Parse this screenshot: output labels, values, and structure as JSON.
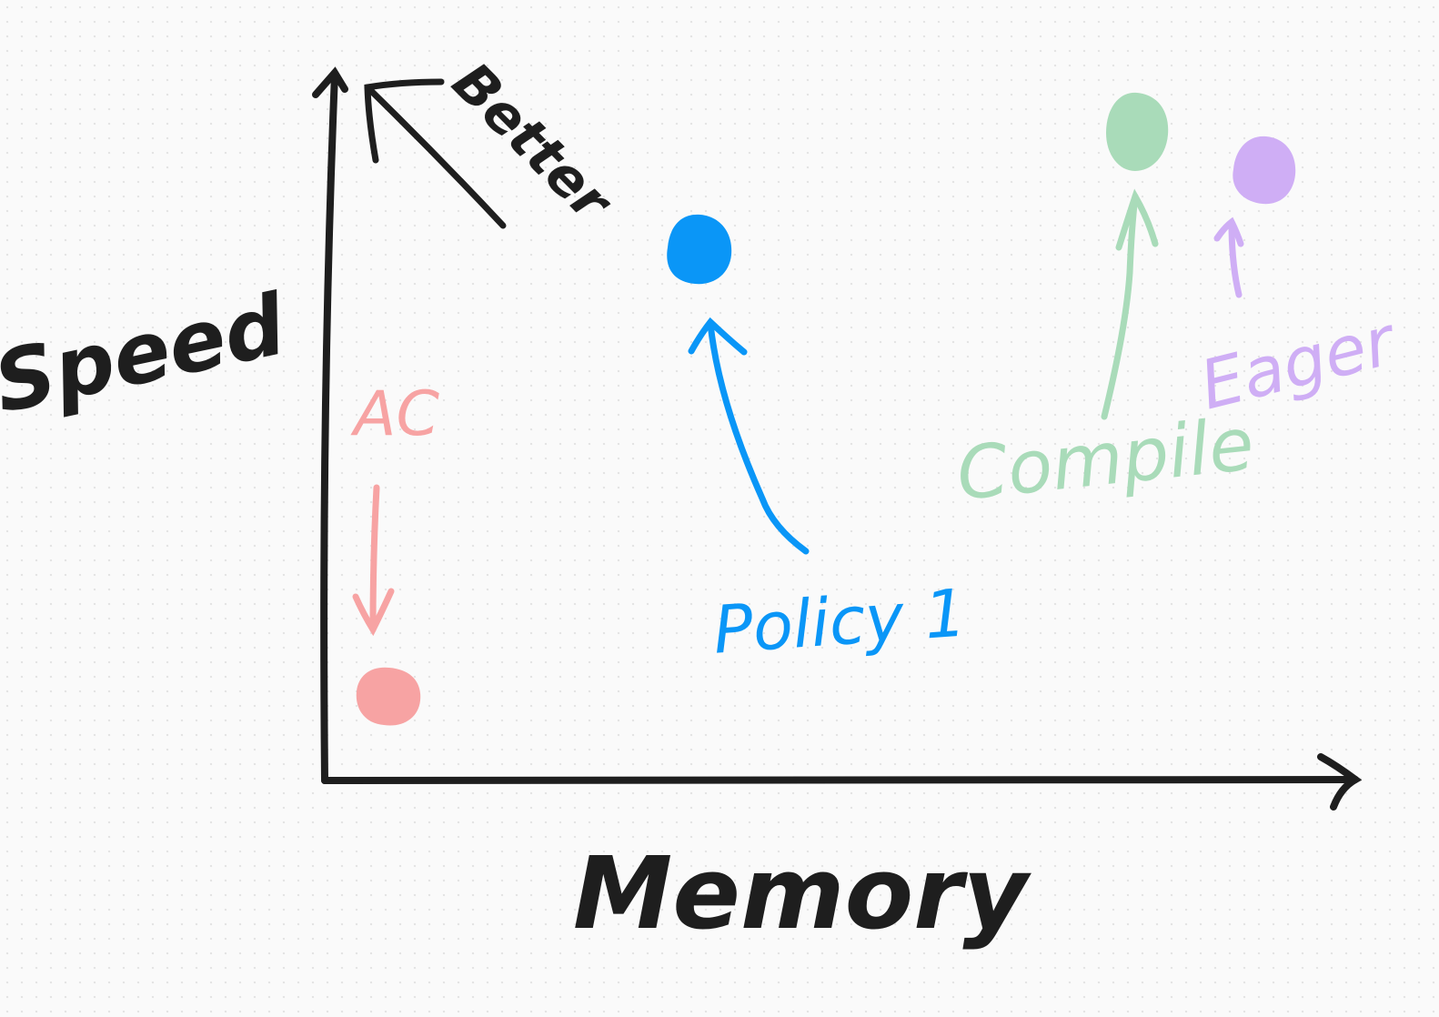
{
  "axes": {
    "x_label": "Memory",
    "y_label": "Speed",
    "better_label": "Better"
  },
  "points": [
    {
      "id": "ac",
      "label": "AC",
      "color": "#f7a3a3"
    },
    {
      "id": "policy",
      "label": "Policy 1",
      "color": "#0a96f7"
    },
    {
      "id": "compile",
      "label": "Compile",
      "color": "#a9dbb9"
    },
    {
      "id": "eager",
      "label": "Eager",
      "color": "#cfaef5"
    }
  ],
  "colors": {
    "ink": "#1e1e1e"
  }
}
